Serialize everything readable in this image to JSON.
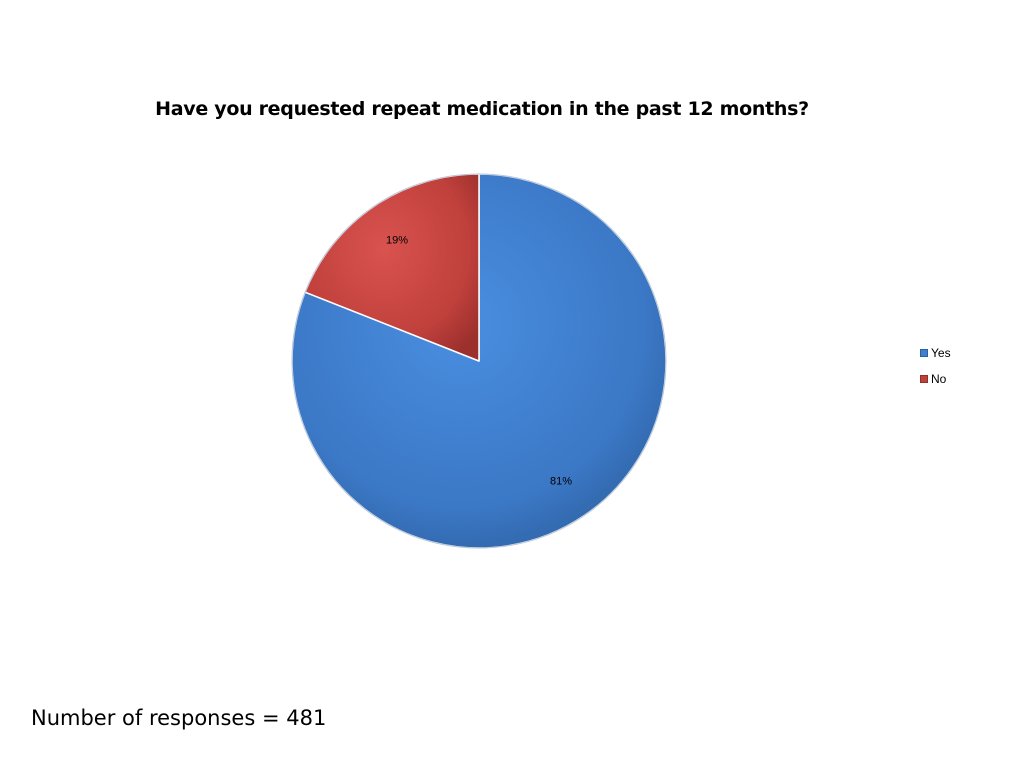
{
  "chart_data": {
    "type": "pie",
    "title": "Have you requested repeat medication in the past 12 months?",
    "categories": [
      "Yes",
      "No"
    ],
    "values": [
      81,
      19
    ],
    "data_labels": [
      "81%",
      "19%"
    ],
    "colors": [
      "#3f7fd1",
      "#c0403c"
    ],
    "legend_placement": "right"
  },
  "footer": {
    "note": "Number of responses = 481"
  }
}
